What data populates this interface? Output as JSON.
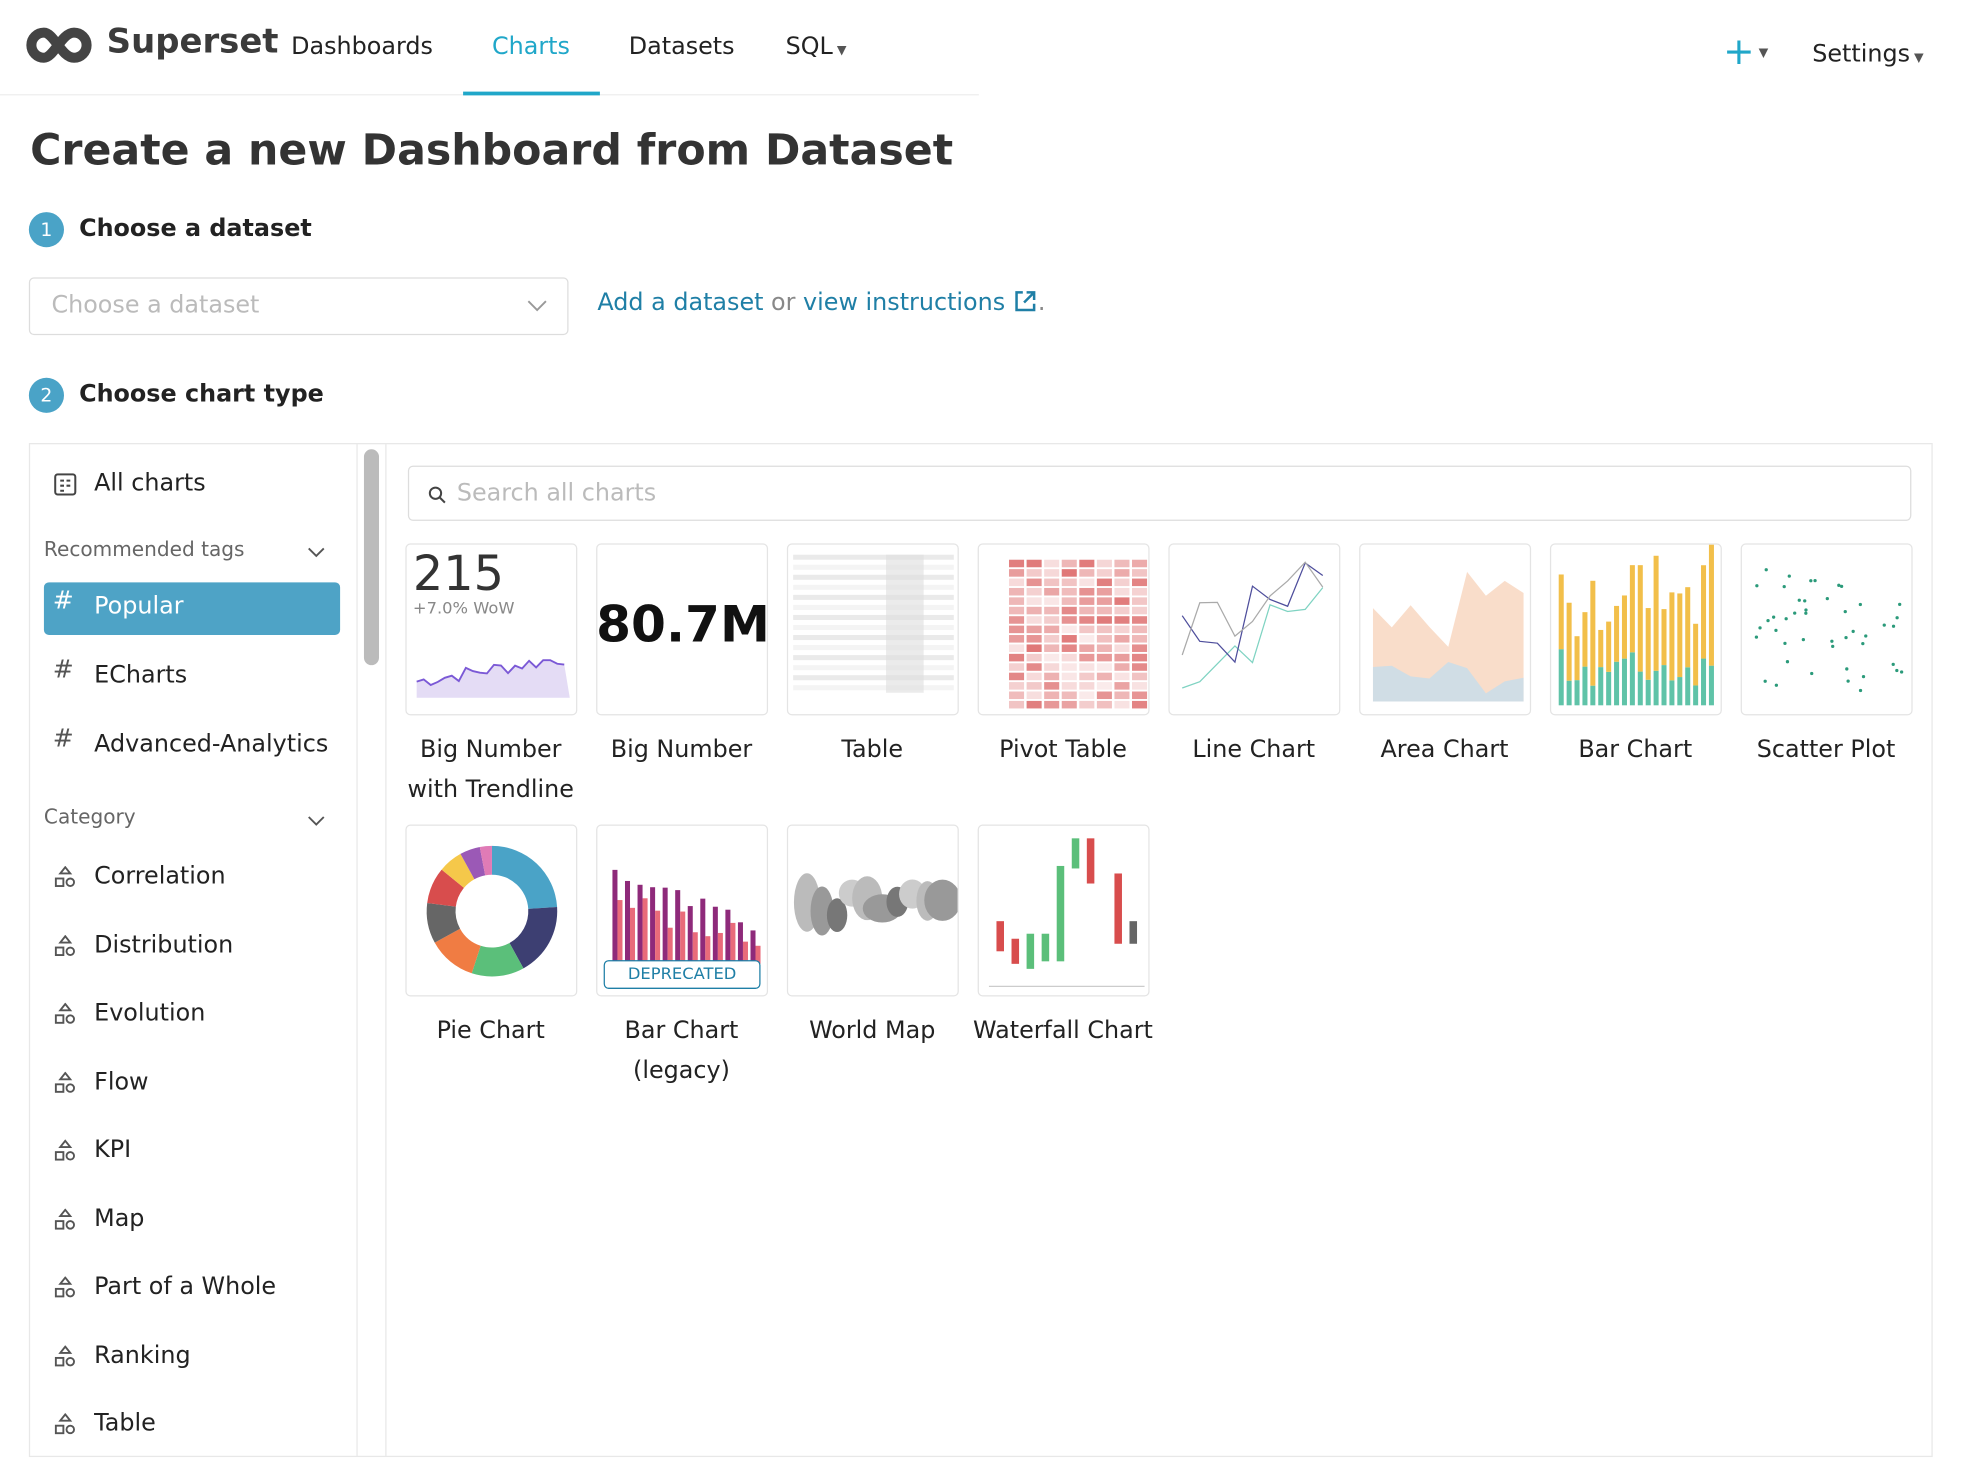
{
  "nav": {
    "brand": "Superset",
    "items": [
      "Dashboards",
      "Charts",
      "Datasets",
      "SQL"
    ],
    "active": 1,
    "plus": "+",
    "settings": "Settings"
  },
  "page": {
    "title": "Create a new Dashboard from Dataset"
  },
  "steps": [
    {
      "number": "1",
      "label": "Choose a dataset"
    },
    {
      "number": "2",
      "label": "Choose chart type"
    }
  ],
  "dataset": {
    "placeholder": "Choose a dataset",
    "add_link": "Add a dataset",
    "or": "or",
    "instructions_link": "view instructions",
    "end": "."
  },
  "sidebar": {
    "all": "All charts",
    "tags_header": "Recommended tags",
    "tags": [
      "Popular",
      "ECharts",
      "Advanced-Analytics"
    ],
    "selected_tag": 0,
    "category_header": "Category",
    "categories": [
      "Correlation",
      "Distribution",
      "Evolution",
      "Flow",
      "KPI",
      "Map",
      "Part of a Whole",
      "Ranking",
      "Table"
    ]
  },
  "search": {
    "placeholder": "Search all charts"
  },
  "charts": [
    {
      "name": "Big Number with Trendline",
      "thumb_number": 215,
      "thumb_caption": "+7.0% WoW"
    },
    {
      "name": "Big Number",
      "thumb_number": "80.7M"
    },
    {
      "name": "Table"
    },
    {
      "name": "Pivot Table"
    },
    {
      "name": "Line Chart"
    },
    {
      "name": "Area Chart"
    },
    {
      "name": "Bar Chart"
    },
    {
      "name": "Scatter Plot"
    },
    {
      "name": "Pie Chart"
    },
    {
      "name": "Bar Chart (legacy)",
      "badge": "DEPRECATED"
    },
    {
      "name": "World Map"
    },
    {
      "name": "Waterfall Chart"
    }
  ]
}
